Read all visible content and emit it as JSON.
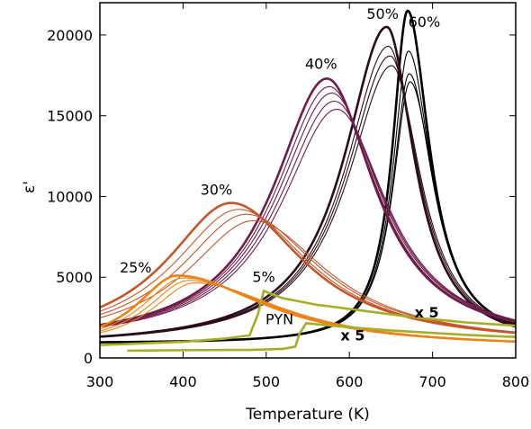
{
  "chart_data": {
    "type": "line",
    "xlabel": "Temperature (K)",
    "ylabel": "ε'",
    "xlim": [
      300,
      800
    ],
    "ylim": [
      0,
      22000
    ],
    "x_ticks": [
      300,
      400,
      500,
      600,
      700,
      800
    ],
    "y_ticks": [
      0,
      5000,
      10000,
      15000,
      20000
    ],
    "x_tick_labels": [
      "300",
      "400",
      "500",
      "600",
      "700",
      "800"
    ],
    "y_tick_labels": [
      "0",
      "5000",
      "10000",
      "15000",
      "20000"
    ],
    "grid": false,
    "annotations": [
      {
        "text": "50%",
        "x": 640,
        "y": 21000,
        "color": "#000000"
      },
      {
        "text": "60%",
        "x": 690,
        "y": 20500,
        "color": "#000000"
      },
      {
        "text": "40%",
        "x": 566,
        "y": 17900,
        "color": "#000000"
      },
      {
        "text": "30%",
        "x": 440,
        "y": 10100,
        "color": "#000000"
      },
      {
        "text": "25%",
        "x": 343,
        "y": 5300,
        "color": "#000000"
      },
      {
        "text": "5%",
        "x": 497,
        "y": 4700,
        "color": "#000000"
      },
      {
        "text": "PYN",
        "x": 516,
        "y": 2100,
        "color": "#000000"
      },
      {
        "text": "x 5",
        "x": 693,
        "y": 2500,
        "color": "#a6ae24"
      },
      {
        "text": "x 5",
        "x": 604,
        "y": 1100,
        "color": "#a6ae24"
      }
    ],
    "series": [
      {
        "label_ref": "60%",
        "color": "#000000",
        "peak_x": 670,
        "peak_y": 21500,
        "width_left": 22,
        "width_right": 32,
        "base": 900,
        "thick": true
      },
      {
        "label_ref": "60%",
        "color": "#000000",
        "peak_x": 671,
        "peak_y": 19000,
        "width_left": 23,
        "width_right": 34,
        "base": 900
      },
      {
        "label_ref": "60%",
        "color": "#000000",
        "peak_x": 672,
        "peak_y": 17600,
        "width_left": 24,
        "width_right": 35,
        "base": 900
      },
      {
        "label_ref": "60%",
        "color": "#000000",
        "peak_x": 673,
        "peak_y": 17100,
        "width_left": 25,
        "width_right": 36,
        "base": 900
      },
      {
        "label_ref": "50%",
        "color": "#2b0c1a",
        "peak_x": 645,
        "peak_y": 20500,
        "width_left": 62,
        "width_right": 40,
        "base": 700,
        "thick": true
      },
      {
        "label_ref": "50%",
        "color": "#2b0c1a",
        "peak_x": 647,
        "peak_y": 19300,
        "width_left": 63,
        "width_right": 41,
        "base": 700
      },
      {
        "label_ref": "50%",
        "color": "#2b0c1a",
        "peak_x": 649,
        "peak_y": 18700,
        "width_left": 64,
        "width_right": 42,
        "base": 700
      },
      {
        "label_ref": "50%",
        "color": "#2b0c1a",
        "peak_x": 651,
        "peak_y": 18100,
        "width_left": 65,
        "width_right": 43,
        "base": 700
      },
      {
        "label_ref": "40%",
        "color": "#6e1d4a",
        "peak_x": 573,
        "peak_y": 17300,
        "width_left": 78,
        "width_right": 70,
        "base": 800,
        "thick": true
      },
      {
        "label_ref": "40%",
        "color": "#6e1d4a",
        "peak_x": 576,
        "peak_y": 16800,
        "width_left": 79,
        "width_right": 71,
        "base": 800
      },
      {
        "label_ref": "40%",
        "color": "#6e1d4a",
        "peak_x": 579,
        "peak_y": 16400,
        "width_left": 80,
        "width_right": 72,
        "base": 800
      },
      {
        "label_ref": "40%",
        "color": "#6e1d4a",
        "peak_x": 582,
        "peak_y": 15900,
        "width_left": 81,
        "width_right": 73,
        "base": 800
      },
      {
        "label_ref": "40%",
        "color": "#6e1d4a",
        "peak_x": 585,
        "peak_y": 15400,
        "width_left": 82,
        "width_right": 74,
        "base": 800
      },
      {
        "label_ref": "30%",
        "color": "#c4572a",
        "peak_x": 458,
        "peak_y": 9600,
        "width_left": 95,
        "width_right": 105,
        "base": 800,
        "thick": true
      },
      {
        "label_ref": "30%",
        "color": "#c4572a",
        "peak_x": 467,
        "peak_y": 9200,
        "width_left": 96,
        "width_right": 106,
        "base": 800
      },
      {
        "label_ref": "30%",
        "color": "#c4572a",
        "peak_x": 476,
        "peak_y": 8900,
        "width_left": 97,
        "width_right": 107,
        "base": 800
      },
      {
        "label_ref": "30%",
        "color": "#c4572a",
        "peak_x": 485,
        "peak_y": 8500,
        "width_left": 98,
        "width_right": 108,
        "base": 800
      },
      {
        "label_ref": "25%",
        "color": "#ee8216",
        "peak_x": 393,
        "peak_y": 5100,
        "width_left": 60,
        "width_right": 130,
        "base": 600,
        "thick": true
      },
      {
        "label_ref": "25%",
        "color": "#ee8216",
        "peak_x": 400,
        "peak_y": 4950,
        "width_left": 61,
        "width_right": 131,
        "base": 600
      },
      {
        "label_ref": "25%",
        "color": "#ee8216",
        "peak_x": 407,
        "peak_y": 4800,
        "width_left": 62,
        "width_right": 132,
        "base": 600
      },
      {
        "label_ref": "25%",
        "color": "#ee8216",
        "peak_x": 414,
        "peak_y": 4650,
        "width_left": 63,
        "width_right": 133,
        "base": 600
      }
    ],
    "step_series": [
      {
        "label_ref": "5%",
        "color": "#a6ae24",
        "x": [
          300,
          350,
          400,
          450,
          480,
          490,
          497,
          520,
          560,
          620,
          680,
          740,
          800
        ],
        "y": [
          800,
          900,
          1000,
          1200,
          1400,
          2700,
          4150,
          3700,
          3300,
          2900,
          2500,
          2200,
          2000
        ]
      },
      {
        "label_ref": "PYN",
        "color": "#a6ae24",
        "x": [
          333,
          400,
          480,
          520,
          535,
          540,
          548,
          600,
          650,
          700,
          750,
          800
        ],
        "y": [
          450,
          480,
          500,
          560,
          700,
          1500,
          2150,
          1900,
          1700,
          1550,
          1400,
          1300
        ]
      }
    ]
  }
}
